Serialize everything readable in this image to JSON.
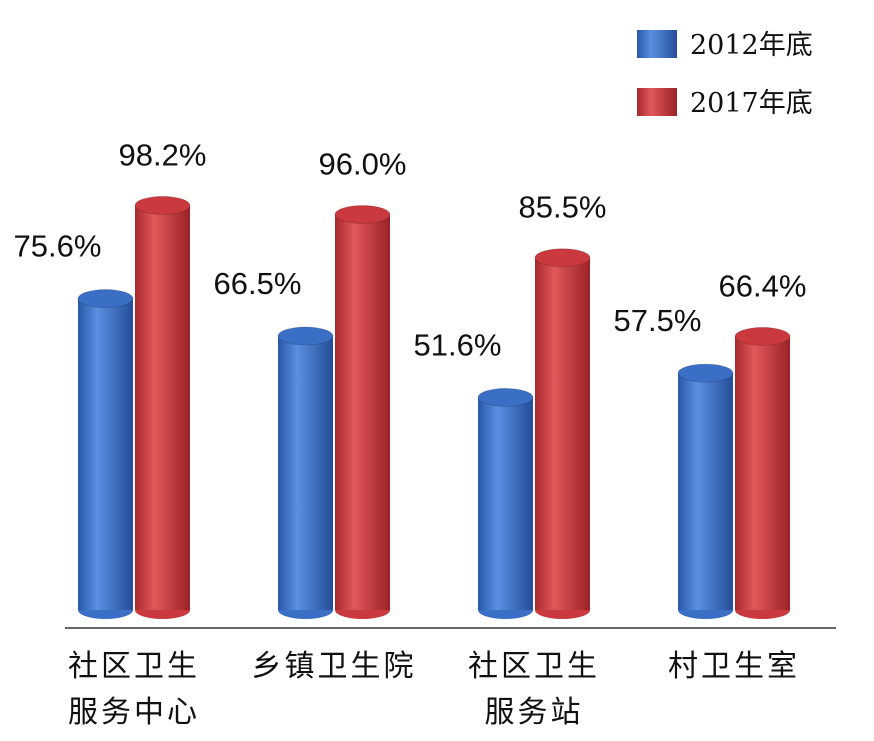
{
  "chart_data": {
    "type": "bar",
    "categories": [
      [
        "社区卫生",
        "服务中心"
      ],
      [
        "乡镇卫生院"
      ],
      [
        "社区卫生",
        "服务站"
      ],
      [
        "村卫生室"
      ]
    ],
    "series": [
      {
        "name": "2012年底",
        "color": "#3b6fc6",
        "values": [
          75.6,
          66.5,
          51.6,
          57.5
        ],
        "value_labels": [
          "75.6%",
          "66.5%",
          "51.6%",
          "57.5%"
        ]
      },
      {
        "name": "2017年底",
        "color": "#c9393d",
        "values": [
          98.2,
          96.0,
          85.5,
          66.4
        ],
        "value_labels": [
          "98.2%",
          "96.0%",
          "85.5%",
          "66.4%"
        ]
      }
    ],
    "ylim": [
      0,
      100
    ]
  }
}
